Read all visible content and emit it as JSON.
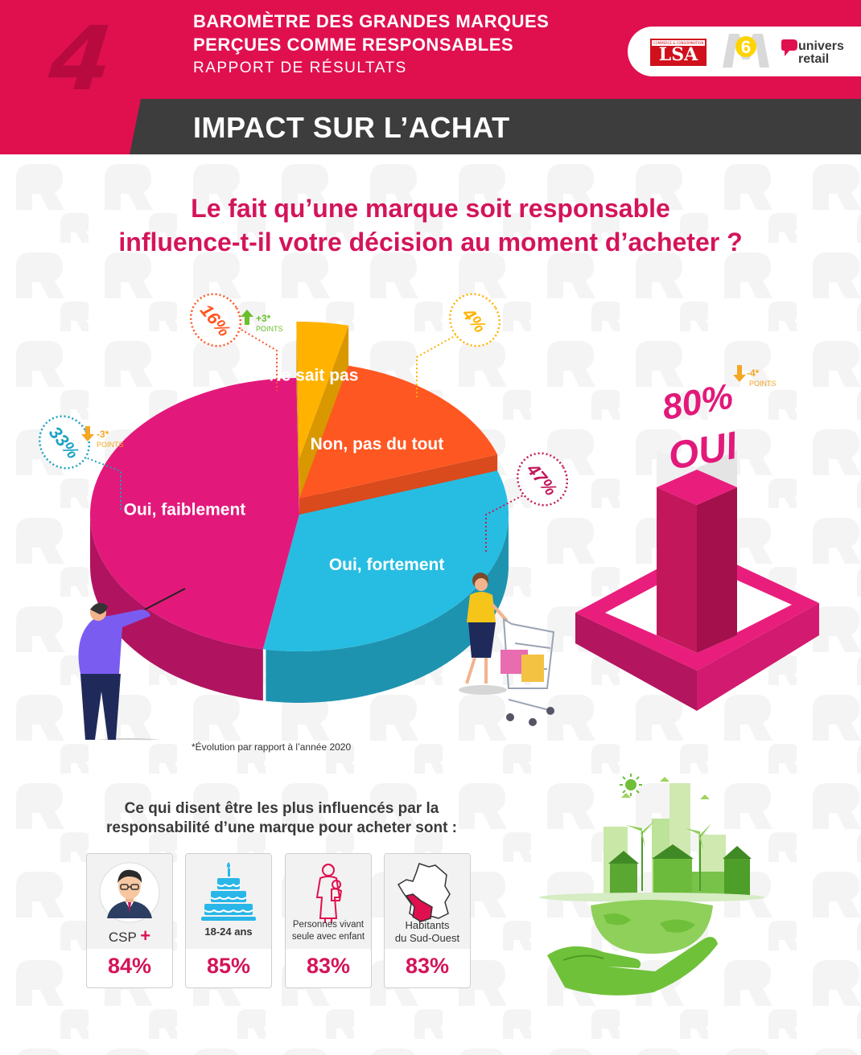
{
  "header": {
    "section_number": "4",
    "line1": "BAROMÈTRE DES GRANDES MARQUES",
    "line2": "PERÇUES COMME RESPONSABLES",
    "line3": "RAPPORT DE RÉSULTATS",
    "section_title": "IMPACT SUR L’ACHAT",
    "logos": {
      "lsa": "LSA",
      "m6": "6",
      "univers_retail_1": "univers",
      "univers_retail_2": "retail"
    }
  },
  "question": {
    "line1": "Le fait qu’une marque soit responsable",
    "line2": "influence-t-il votre décision au moment d’acheter ?"
  },
  "chart_data": [
    {
      "type": "pie",
      "categories": [
        "Oui, faiblement",
        "Non, pas du tout",
        "Ne sait pas",
        "Oui, fortement"
      ],
      "values": [
        47,
        16,
        4,
        33
      ],
      "value_labels": [
        "47%",
        "16%",
        "4%",
        "33%"
      ],
      "colors": [
        "#e2197b",
        "#ff5722",
        "#ffb300",
        "#27bde2"
      ],
      "evolutions": [
        {
          "category": "Non, pas du tout",
          "arrow": "up",
          "value": "+3*",
          "unit": "POINTS",
          "color": "#6abf2c"
        },
        {
          "category": "Oui, fortement",
          "arrow": "down",
          "value": "-3*",
          "unit": "POINTS",
          "color": "#f5a623"
        }
      ]
    },
    {
      "type": "bar",
      "categories": [
        "OUI"
      ],
      "values": [
        80
      ],
      "value_labels": [
        "80%"
      ],
      "evolution": {
        "arrow": "down",
        "value": "-4*",
        "unit": "POINTS",
        "color": "#f5a623"
      },
      "ylim": [
        0,
        100
      ],
      "color": "#c2185b"
    }
  ],
  "footnote": "*Évolution par rapport à l’année 2020",
  "subtitle": {
    "line1": "Ce qui disent être les plus influencés par la",
    "line2": "responsabilité d’une marque pour acheter sont :"
  },
  "cards": [
    {
      "icon": "businessman-icon",
      "label": "CSP",
      "label_suffix": "+",
      "value": "84%"
    },
    {
      "icon": "birthday-cake-icon",
      "label": "18-24 ans",
      "value": "85%"
    },
    {
      "icon": "parent-with-child-icon",
      "label_line1": "Personnes vivant",
      "label_line2": "seule avec enfant",
      "value": "83%"
    },
    {
      "icon": "france-map-icon",
      "label_line1": "Habitants",
      "label_line2": "du Sud-Ouest",
      "value": "83%"
    }
  ],
  "colors": {
    "brand_pink": "#e0104f",
    "dark_bar": "#3d3d3d",
    "accent_text": "#d4145a"
  }
}
